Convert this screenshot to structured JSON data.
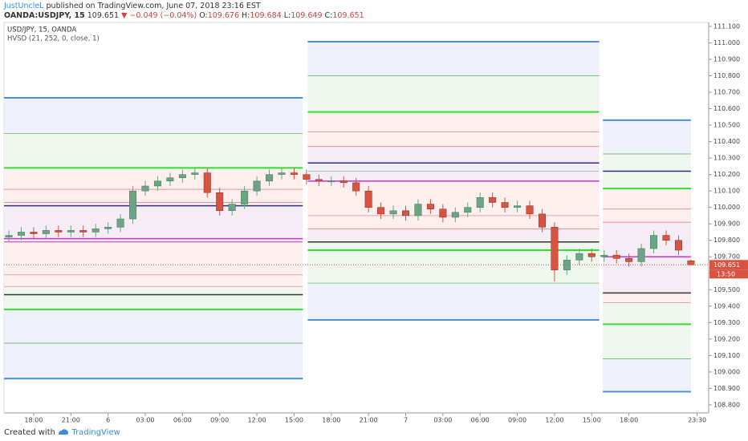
{
  "header": {
    "author": "JustUncleL",
    "published": "published on TradingView.com, June 07, 2018 23:16 EST",
    "symbol": "OANDA:USDJPY, 15",
    "last": "109.651",
    "change": "▼ −0.049 (−0.04%)",
    "ohlc": [
      {
        "label": "O:",
        "value": "109.676"
      },
      {
        "label": "H:",
        "value": "109.684"
      },
      {
        "label": "L:",
        "value": "109.649"
      },
      {
        "label": "C:",
        "value": "109.651"
      }
    ]
  },
  "footer": {
    "created": "Created with",
    "brand": "TradingView"
  },
  "chart_data": {
    "type": "candlestick",
    "title": "USD/JPY, 15, OANDA",
    "indicator": "HVSD (21, 252, 0, close, 1)",
    "up_color": "#6ba583",
    "down_color": "#d75442",
    "xlim": [
      -0.39,
      56.43
    ],
    "ylim": [
      108.751,
      111.124
    ],
    "xticks": [
      {
        "value": 2,
        "label": "18:00"
      },
      {
        "value": 5,
        "label": "21:00"
      },
      {
        "value": 8,
        "label": "6"
      },
      {
        "value": 11,
        "label": "03:00"
      },
      {
        "value": 14,
        "label": "06:00"
      },
      {
        "value": 17,
        "label": "09:00"
      },
      {
        "value": 20,
        "label": "12:00"
      },
      {
        "value": 23,
        "label": "15:00"
      },
      {
        "value": 26,
        "label": "18:00"
      },
      {
        "value": 29,
        "label": "21:00"
      },
      {
        "value": 32,
        "label": "7"
      },
      {
        "value": 35,
        "label": "03:00"
      },
      {
        "value": 38,
        "label": "06:00"
      },
      {
        "value": 41,
        "label": "09:00"
      },
      {
        "value": 44,
        "label": "12:00"
      },
      {
        "value": 47,
        "label": "15:00"
      },
      {
        "value": 50,
        "label": "18:00"
      },
      {
        "value": 55.5,
        "label": "23:30"
      }
    ],
    "yticks": [
      {
        "value": 108.8,
        "label": "108.800"
      },
      {
        "value": 108.9,
        "label": "108.900"
      },
      {
        "value": 109,
        "label": "109.000"
      },
      {
        "value": 109.1,
        "label": "109.100"
      },
      {
        "value": 109.2,
        "label": "109.200"
      },
      {
        "value": 109.3,
        "label": "109.300"
      },
      {
        "value": 109.4,
        "label": "109.400"
      },
      {
        "value": 109.5,
        "label": "109.500"
      },
      {
        "value": 109.6,
        "label": "109.600"
      },
      {
        "value": 109.7,
        "label": "109.700"
      },
      {
        "value": 109.8,
        "label": "109.800"
      },
      {
        "value": 109.9,
        "label": "109.900"
      },
      {
        "value": 110,
        "label": "110.000"
      },
      {
        "value": 110.1,
        "label": "110.100"
      },
      {
        "value": 110.2,
        "label": "110.200"
      },
      {
        "value": 110.3,
        "label": "110.300"
      },
      {
        "value": 110.4,
        "label": "110.400"
      },
      {
        "value": 110.5,
        "label": "110.500"
      },
      {
        "value": 110.6,
        "label": "110.600"
      },
      {
        "value": 110.7,
        "label": "110.700"
      },
      {
        "value": 110.8,
        "label": "110.800"
      },
      {
        "value": 110.9,
        "label": "110.900"
      },
      {
        "value": 111,
        "label": "111.000"
      },
      {
        "value": 111.1,
        "label": "111.100"
      }
    ],
    "open": [
      109.82,
      109.83,
      109.85,
      109.84,
      109.86,
      109.85,
      109.86,
      109.85,
      109.87,
      109.88,
      109.93,
      110.1,
      110.13,
      110.16,
      110.18,
      110.2,
      110.21,
      110.09,
      109.98,
      110.02,
      110.1,
      110.16,
      110.2,
      110.21,
      110.2,
      110.17,
      110.16,
      110.16,
      110.15,
      110.1,
      110.0,
      109.96,
      109.98,
      109.95,
      110.02,
      109.99,
      109.94,
      109.97,
      110.0,
      110.06,
      110.03,
      110.0,
      110.01,
      109.96,
      109.88,
      109.62,
      109.68,
      109.72,
      109.7,
      109.71,
      109.69,
      109.67,
      109.75,
      109.83,
      109.8,
      109.676
    ],
    "high": [
      109.86,
      109.88,
      109.88,
      109.89,
      109.89,
      109.89,
      109.89,
      109.9,
      109.91,
      109.96,
      110.13,
      110.16,
      110.19,
      110.21,
      110.23,
      110.24,
      110.24,
      110.12,
      110.05,
      110.13,
      110.19,
      110.23,
      110.24,
      110.24,
      110.23,
      110.2,
      110.19,
      110.19,
      110.18,
      110.13,
      110.03,
      110.01,
      110.01,
      110.05,
      110.05,
      110.02,
      110.0,
      110.03,
      110.09,
      110.09,
      110.06,
      110.04,
      110.04,
      109.99,
      109.91,
      109.71,
      109.75,
      109.75,
      109.74,
      109.74,
      109.72,
      109.78,
      109.86,
      109.86,
      109.83,
      109.684
    ],
    "low": [
      109.79,
      109.8,
      109.81,
      109.81,
      109.82,
      109.82,
      109.82,
      109.82,
      109.84,
      109.85,
      109.9,
      110.07,
      110.1,
      110.13,
      110.15,
      110.17,
      110.06,
      109.95,
      109.95,
      109.99,
      110.07,
      110.13,
      110.17,
      110.17,
      110.14,
      110.13,
      110.13,
      110.12,
      110.07,
      109.97,
      109.93,
      109.93,
      109.92,
      109.92,
      109.96,
      109.91,
      109.91,
      109.94,
      109.97,
      110.0,
      109.97,
      109.97,
      109.93,
      109.85,
      109.55,
      109.59,
      109.65,
      109.67,
      109.67,
      109.66,
      109.64,
      109.64,
      109.72,
      109.77,
      109.71,
      109.649
    ],
    "close": [
      109.83,
      109.85,
      109.84,
      109.86,
      109.85,
      109.86,
      109.85,
      109.87,
      109.88,
      109.93,
      110.1,
      110.13,
      110.16,
      110.18,
      110.2,
      110.21,
      110.09,
      109.98,
      110.02,
      110.1,
      110.16,
      110.2,
      110.21,
      110.2,
      110.17,
      110.16,
      110.16,
      110.15,
      110.1,
      110.0,
      109.96,
      109.98,
      109.95,
      110.02,
      109.99,
      109.94,
      109.97,
      110.0,
      110.06,
      110.03,
      110.0,
      110.01,
      109.96,
      109.88,
      109.62,
      109.68,
      109.72,
      109.7,
      109.71,
      109.69,
      109.67,
      109.75,
      109.83,
      109.8,
      109.74,
      109.651
    ],
    "last_price": {
      "value": 109.651,
      "label": "109.651"
    },
    "countdown": "13:50",
    "sessions": [
      {
        "start": -0.39,
        "end": 23.7,
        "levels": [
          {
            "value": 110.666,
            "color": "#4a90e2",
            "width": 2
          },
          {
            "value": 110.45,
            "color": "#4caf50",
            "width": 0.7
          },
          {
            "value": 110.24,
            "color": "#33dd33",
            "width": 2
          },
          {
            "value": 110.11,
            "color": "#e57373",
            "width": 0.7
          },
          {
            "value": 110.03,
            "color": "#e57373",
            "width": 0.7
          },
          {
            "value": 110.01,
            "color": "#303080",
            "width": 1.5
          },
          {
            "value": 109.81,
            "color": "#cc33cc",
            "width": 1.5
          },
          {
            "value": 109.79,
            "color": "#cc33cc",
            "width": 1
          },
          {
            "value": 109.59,
            "color": "#e57373",
            "width": 0.7
          },
          {
            "value": 109.52,
            "color": "#e57373",
            "width": 0.7
          },
          {
            "value": 109.47,
            "color": "#333333",
            "width": 1.5
          },
          {
            "value": 109.38,
            "color": "#33dd33",
            "width": 2
          },
          {
            "value": 109.175,
            "color": "#4caf50",
            "width": 0.7
          },
          {
            "value": 108.96,
            "color": "#4a90e2",
            "width": 2
          }
        ],
        "fills": [
          "#eef0fc",
          "#eef7ee",
          "#fcefee",
          "#fcefee",
          "#f6ecf6",
          "#f6ecf6",
          "#f6ecf6",
          "#fcefee",
          "#fcefee",
          "#eef7ee",
          "#eef7ee",
          "#eef0fc",
          "#eef0fc"
        ]
      },
      {
        "start": 24.1,
        "end": 47.6,
        "levels": [
          {
            "value": 111.007,
            "color": "#4a90e2",
            "width": 2
          },
          {
            "value": 110.8,
            "color": "#4caf50",
            "width": 0.7
          },
          {
            "value": 110.58,
            "color": "#33dd33",
            "width": 2
          },
          {
            "value": 110.46,
            "color": "#e57373",
            "width": 0.7
          },
          {
            "value": 110.37,
            "color": "#e57373",
            "width": 0.7
          },
          {
            "value": 110.27,
            "color": "#303080",
            "width": 1.5
          },
          {
            "value": 110.22,
            "color": "#7fbf9f",
            "width": 0.7
          },
          {
            "value": 110.16,
            "color": "#cc33cc",
            "width": 1.5
          },
          {
            "value": 109.95,
            "color": "#e57373",
            "width": 0.7
          },
          {
            "value": 109.87,
            "color": "#e57373",
            "width": 0.7
          },
          {
            "value": 109.79,
            "color": "#333333",
            "width": 1.5
          },
          {
            "value": 109.74,
            "color": "#33dd33",
            "width": 2
          },
          {
            "value": 109.54,
            "color": "#4caf50",
            "width": 0.7
          },
          {
            "value": 109.316,
            "color": "#4a90e2",
            "width": 2
          }
        ],
        "fills": [
          "#eef0fc",
          "#eef7ee",
          "#fcefee",
          "#fcefee",
          "#f6ecf6",
          "#f6ecf6",
          "#f6ecf6",
          "#fcefee",
          "#fcefee",
          "#f6ecf6",
          "#eef7ee",
          "#eef7ee",
          "#eef0fc"
        ]
      },
      {
        "start": 47.9,
        "end": 55.0,
        "levels": [
          {
            "value": 110.53,
            "color": "#4a90e2",
            "width": 2
          },
          {
            "value": 110.325,
            "color": "#4caf50",
            "width": 0.7
          },
          {
            "value": 110.22,
            "color": "#303080",
            "width": 1.5
          },
          {
            "value": 110.115,
            "color": "#33dd33",
            "width": 2
          },
          {
            "value": 109.99,
            "color": "#e57373",
            "width": 0.7
          },
          {
            "value": 109.91,
            "color": "#e57373",
            "width": 0.7
          },
          {
            "value": 109.7,
            "color": "#cc33cc",
            "width": 1.5
          },
          {
            "value": 109.48,
            "color": "#333333",
            "width": 1.5
          },
          {
            "value": 109.42,
            "color": "#e57373",
            "width": 0.7
          },
          {
            "value": 109.29,
            "color": "#33dd33",
            "width": 2
          },
          {
            "value": 109.08,
            "color": "#4caf50",
            "width": 0.7
          },
          {
            "value": 108.88,
            "color": "#4a90e2",
            "width": 2
          }
        ],
        "fills": [
          "#eef0fc",
          "#eef7ee",
          "#eef7ee",
          "#fcefee",
          "#fcefee",
          "#f6ecf6",
          "#f6ecf6",
          "#fcefee",
          "#eef7ee",
          "#eef7ee",
          "#eef0fc"
        ]
      }
    ]
  }
}
